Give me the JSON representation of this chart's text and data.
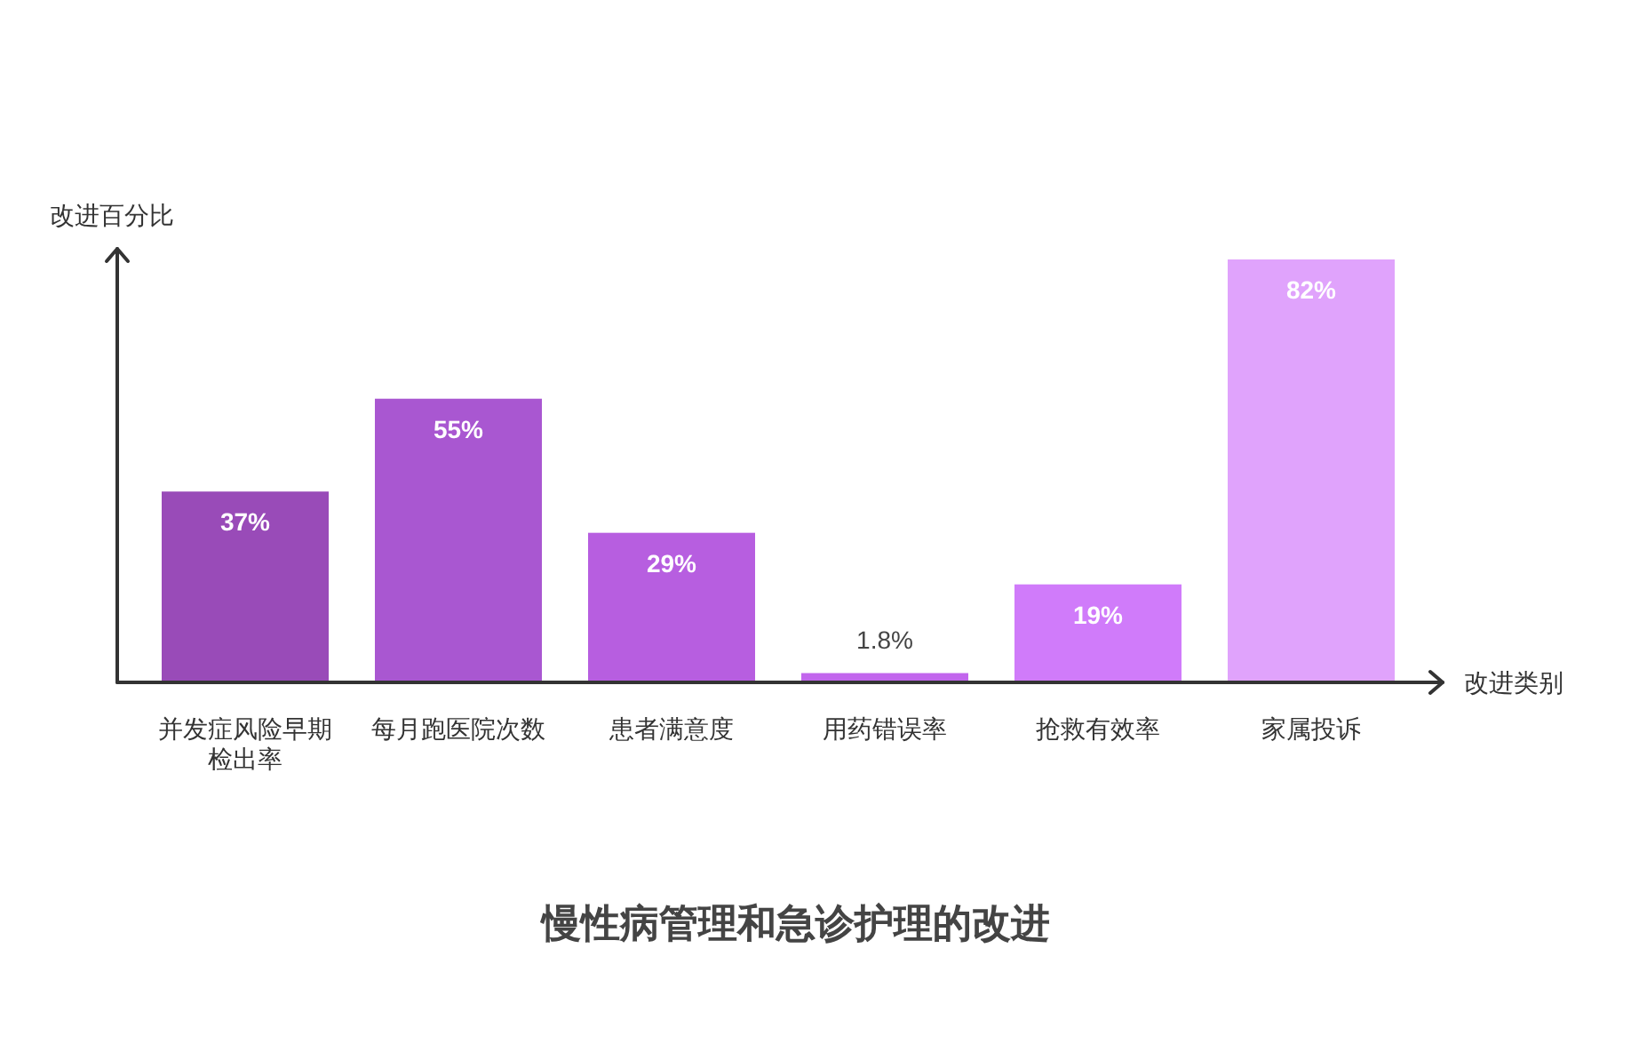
{
  "chart_data": {
    "type": "bar",
    "title": "慢性病管理和急诊护理的改进",
    "xlabel": "改进类别",
    "ylabel": "改进百分比",
    "categories": [
      "并发症风险早期检出率",
      "每月跑医院次数",
      "患者满意度",
      "用药错误率",
      "抢救有效率",
      "家属投诉"
    ],
    "values": [
      37,
      55,
      29,
      1.8,
      19,
      82
    ],
    "value_labels": [
      "37%",
      "55%",
      "29%",
      "1.8%",
      "19%",
      "82%"
    ],
    "colors": [
      "#994bb8",
      "#a957d1",
      "#b75ee0",
      "#c266ed",
      "#d07bfa",
      "#e0a3fc"
    ]
  }
}
